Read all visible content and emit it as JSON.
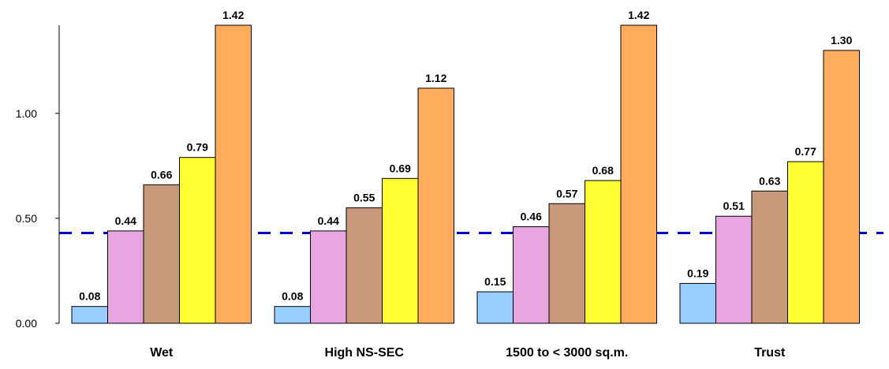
{
  "chart_data": {
    "type": "bar",
    "title": "",
    "xlabel": "",
    "ylabel": "",
    "categories": [
      "Wet",
      "High NS-SEC",
      "1500 to < 3000 sq.m.",
      "Trust"
    ],
    "series": [
      {
        "values": [
          0.08,
          0.08,
          0.15,
          0.19
        ],
        "color": "#99CCFF"
      },
      {
        "values": [
          0.44,
          0.44,
          0.46,
          0.51
        ],
        "color": "#E8A6E0"
      },
      {
        "values": [
          0.66,
          0.55,
          0.57,
          0.63
        ],
        "color": "#C8997A"
      },
      {
        "values": [
          0.79,
          0.69,
          0.68,
          0.77
        ],
        "color": "#FFFF33"
      },
      {
        "values": [
          1.42,
          1.12,
          1.42,
          1.3
        ],
        "color": "#FFAD5C"
      }
    ],
    "data_labels": [
      [
        "0.08",
        "0.08",
        "0.15",
        "0.19"
      ],
      [
        "0.44",
        "0.44",
        "0.46",
        "0.51"
      ],
      [
        "0.66",
        "0.55",
        "0.57",
        "0.63"
      ],
      [
        "0.79",
        "0.69",
        "0.68",
        "0.77"
      ],
      [
        "1.42",
        "1.12",
        "1.42",
        "1.30"
      ]
    ],
    "yticks": [
      0,
      0.5,
      1.0
    ],
    "ytick_labels": [
      "0.00",
      "0.50",
      "1.00"
    ],
    "ylim": [
      0,
      1.42
    ],
    "reference_line": {
      "value": 0.43,
      "color": "#0000CC",
      "style": "dashed"
    },
    "grid": false,
    "legend": "none"
  }
}
